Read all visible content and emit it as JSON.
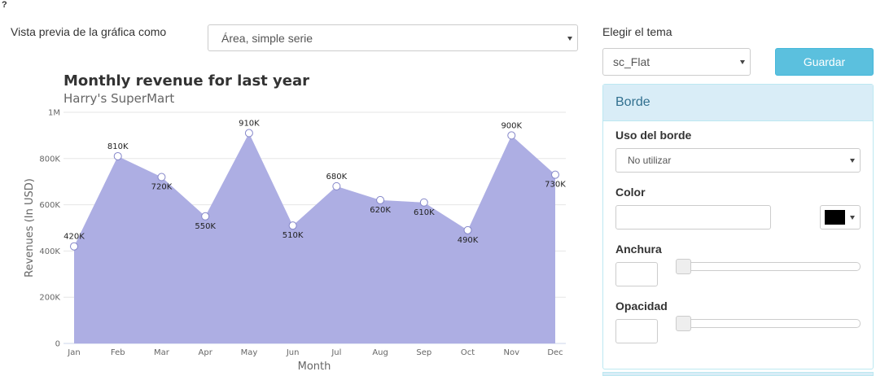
{
  "help": "?",
  "preview": {
    "label": "Vista previa de la gráfica como",
    "selected": "Área, simple serie"
  },
  "theme": {
    "label": "Elegir el tema",
    "selected": "sc_Flat",
    "save_button": "Guardar"
  },
  "panel": {
    "title": "Borde",
    "border_usage": {
      "label": "Uso del borde",
      "selected": "No utilizar"
    },
    "color": {
      "label": "Color"
    },
    "width": {
      "label": "Anchura"
    },
    "opacity": {
      "label": "Opacidad"
    }
  },
  "chart_data": {
    "type": "area",
    "title": "Monthly revenue for last year",
    "subtitle": "Harry's SuperMart",
    "x_label": "Month",
    "y_label": "Revenues (In USD)",
    "categories": [
      "Jan",
      "Feb",
      "Mar",
      "Apr",
      "May",
      "Jun",
      "Jul",
      "Aug",
      "Sep",
      "Oct",
      "Nov",
      "Dec"
    ],
    "values": [
      420000,
      810000,
      720000,
      550000,
      910000,
      510000,
      680000,
      620000,
      610000,
      490000,
      900000,
      730000
    ],
    "value_labels": [
      "420K",
      "810K",
      "720K",
      "550K",
      "910K",
      "510K",
      "680K",
      "620K",
      "610K",
      "490K",
      "900K",
      "730K"
    ],
    "color": "#adaee3",
    "marker_color": "#8587c9",
    "ylim": [
      0,
      1000000
    ],
    "yticks": [
      0,
      {
        "value": 200000,
        "label": "200K"
      },
      {
        "value": 400000,
        "label": "400K"
      },
      {
        "value": 600000,
        "label": "600K"
      },
      {
        "value": 800000,
        "label": "800K"
      },
      {
        "value": 1000000,
        "label": "1M"
      }
    ],
    "grid": true
  }
}
